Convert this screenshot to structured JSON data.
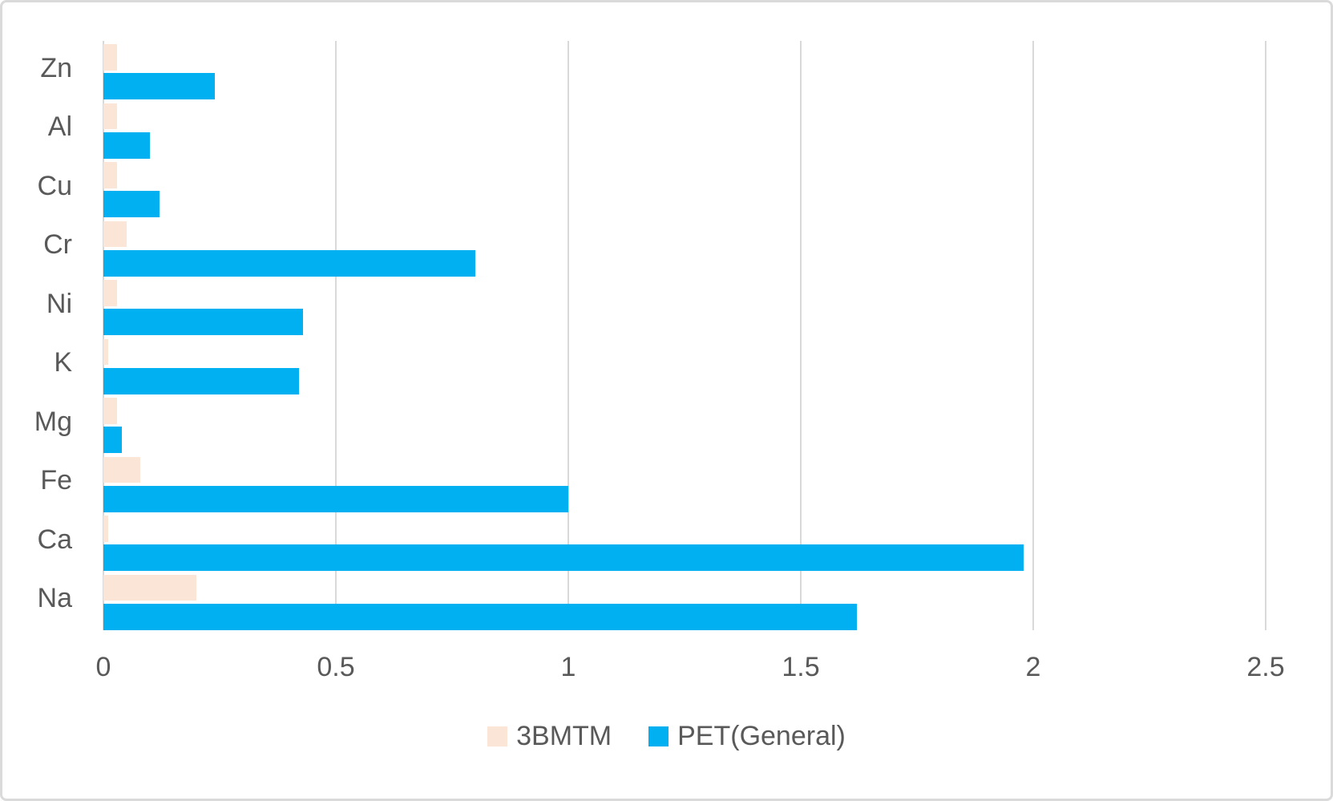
{
  "chart_data": {
    "type": "bar",
    "orientation": "horizontal",
    "title": "",
    "xlabel": "",
    "ylabel": "",
    "xlim": [
      0,
      2.5
    ],
    "grid": true,
    "legend_position": "bottom",
    "categories_top_to_bottom": [
      "Zn",
      "Al",
      "Cu",
      "Cr",
      "Ni",
      "K",
      "Mg",
      "Fe",
      "Ca",
      "Na"
    ],
    "x_ticks": [
      {
        "label": "0",
        "value": 0
      },
      {
        "label": "0.5",
        "value": 0.5
      },
      {
        "label": "1",
        "value": 1
      },
      {
        "label": "1.5",
        "value": 1.5
      },
      {
        "label": "2",
        "value": 2
      },
      {
        "label": "2.5",
        "value": 2.5
      }
    ],
    "series": [
      {
        "name": "3BMTM",
        "color": "#fbe5d6",
        "values": [
          0.03,
          0.03,
          0.03,
          0.05,
          0.03,
          0.01,
          0.03,
          0.08,
          0.01,
          0.2
        ]
      },
      {
        "name": "PET(General)",
        "color": "#00b0f0",
        "values": [
          0.24,
          0.1,
          0.12,
          0.8,
          0.43,
          0.42,
          0.04,
          1.0,
          1.98,
          1.62
        ]
      }
    ]
  },
  "legend": {
    "items": [
      {
        "label": "3BMTM",
        "color": "#fbe5d6"
      },
      {
        "label": "PET(General)",
        "color": "#00b0f0"
      }
    ]
  },
  "colors": {
    "bar_peach": "#fbe5d6",
    "bar_blue": "#00b0f0",
    "gridline": "#d9d9d9",
    "axis_text": "#595959",
    "frame_border": "#dadada",
    "background": "#ffffff"
  }
}
